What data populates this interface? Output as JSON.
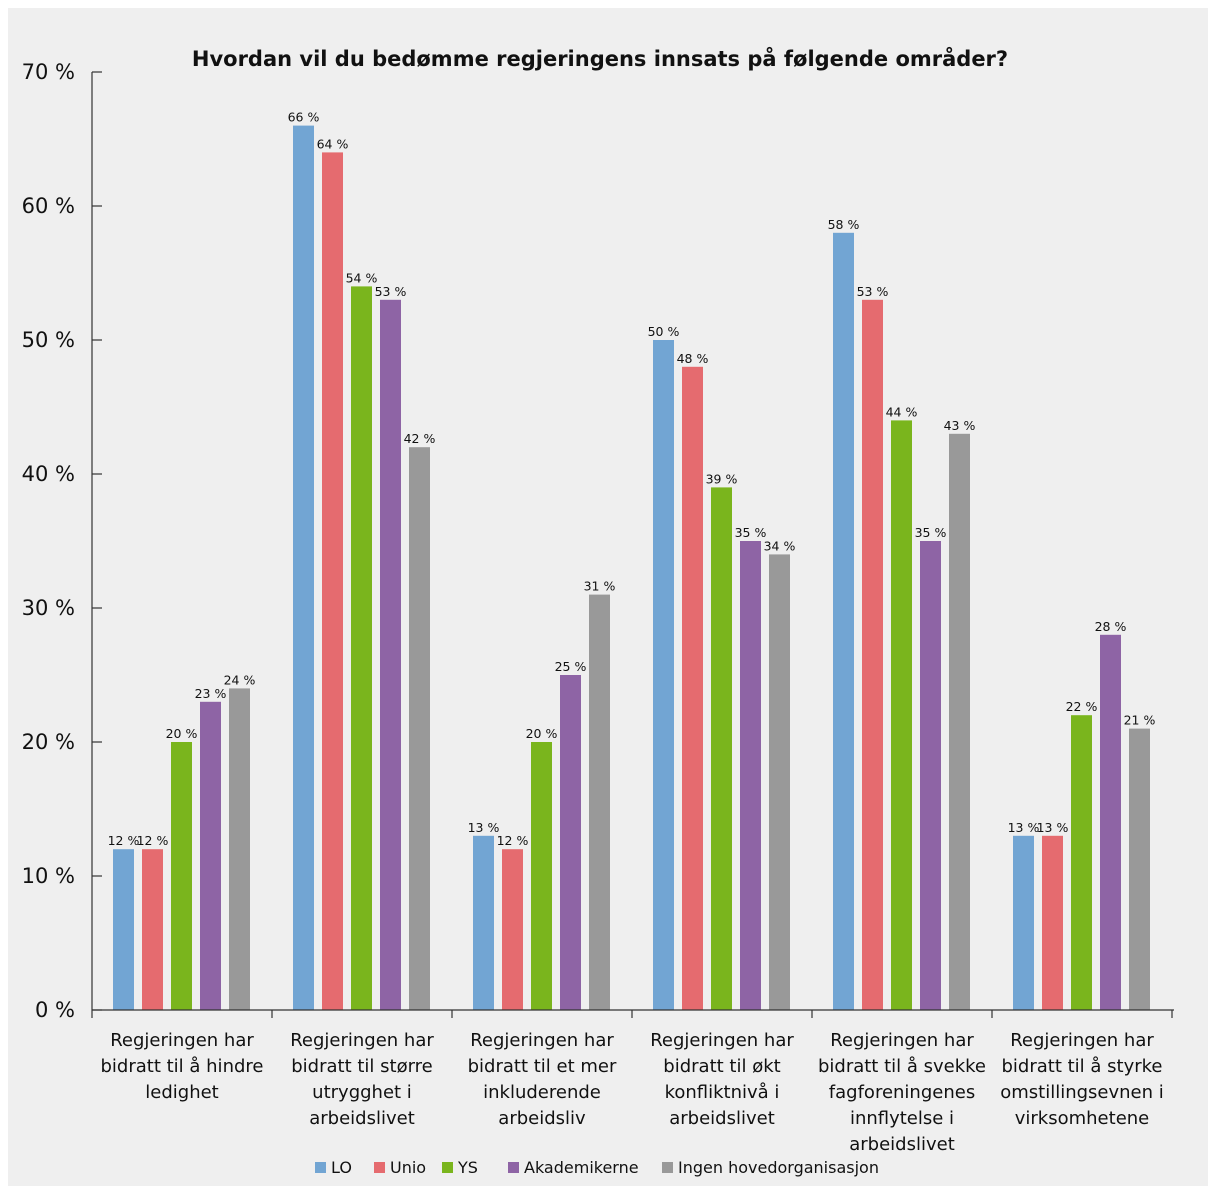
{
  "chart_data": {
    "type": "bar",
    "title": "Hvordan vil du bedømme regjeringens innsats på følgende områder?",
    "xlabel": "",
    "ylabel": "",
    "ylim": [
      0,
      70
    ],
    "yticks": [
      "0 %",
      "10 %",
      "20 %",
      "30 %",
      "40 %",
      "50 %",
      "60 %",
      "70 %"
    ],
    "categories": [
      [
        "Regjeringen har",
        "bidratt til å hindre",
        "ledighet"
      ],
      [
        "Regjeringen har",
        "bidratt til større",
        "utrygghet i",
        "arbeidslivet"
      ],
      [
        "Regjeringen har",
        "bidratt til et mer",
        "inkluderende",
        "arbeidsliv"
      ],
      [
        "Regjeringen har",
        "bidratt til økt",
        "konfliktnivå i",
        "arbeidslivet"
      ],
      [
        "Regjeringen har",
        "bidratt til å svekke",
        "fagforeningenes",
        "innflytelse i",
        "arbeidslivet"
      ],
      [
        "Regjeringen har",
        "bidratt til å styrke",
        "omstillingsevnen i",
        "virksomhetene"
      ]
    ],
    "series": [
      {
        "name": "LO",
        "color": "#72a5d3",
        "values": [
          12,
          66,
          13,
          50,
          58,
          13
        ]
      },
      {
        "name": "Unio",
        "color": "#e56b6f",
        "values": [
          12,
          64,
          12,
          48,
          53,
          13
        ]
      },
      {
        "name": "YS",
        "color": "#7ab51d",
        "values": [
          20,
          54,
          20,
          39,
          44,
          22
        ]
      },
      {
        "name": "Akademikerne",
        "color": "#8e64a5",
        "values": [
          23,
          53,
          25,
          35,
          35,
          28
        ]
      },
      {
        "name": "Ingen hovedorganisasjon",
        "color": "#999999",
        "values": [
          24,
          42,
          31,
          34,
          43,
          21
        ]
      }
    ],
    "value_suffix": " %",
    "grid": false,
    "legend_position": "bottom"
  }
}
